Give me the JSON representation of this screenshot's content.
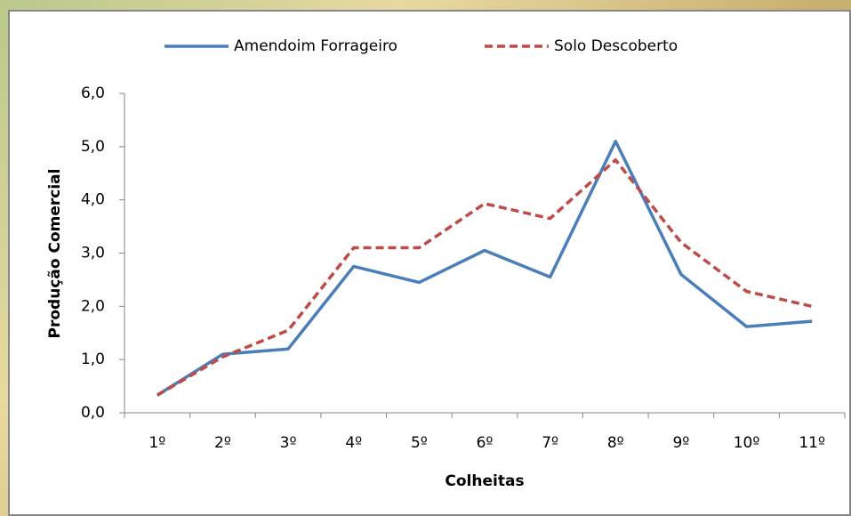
{
  "chart_data": {
    "type": "line",
    "x_label": "Colheitas",
    "y_label": "Produção Comercial",
    "categories": [
      "1º",
      "2º",
      "3º",
      "4º",
      "5º",
      "6º",
      "7º",
      "8º",
      "9º",
      "10º",
      "11º"
    ],
    "series": [
      {
        "name": "Amendoim Forrageiro",
        "color": "#4a7ebb",
        "dash": "solid",
        "values": [
          0.33,
          1.1,
          1.2,
          2.75,
          2.45,
          3.05,
          2.55,
          5.1,
          2.6,
          1.62,
          1.72
        ]
      },
      {
        "name": "Solo Descoberto",
        "color": "#be4b48",
        "dash": "dashed",
        "values": [
          0.33,
          1.05,
          1.55,
          3.1,
          3.1,
          3.93,
          3.65,
          4.75,
          3.2,
          2.28,
          2.0
        ]
      }
    ],
    "ylim": [
      0,
      6
    ],
    "yticks": [
      {
        "value": 0,
        "label": "0,0"
      },
      {
        "value": 1,
        "label": "1,0"
      },
      {
        "value": 2,
        "label": "2,0"
      },
      {
        "value": 3,
        "label": "3,0"
      },
      {
        "value": 4,
        "label": "4,0"
      },
      {
        "value": 5,
        "label": "5,0"
      },
      {
        "value": 6,
        "label": "6,0"
      }
    ],
    "legend": "top"
  }
}
